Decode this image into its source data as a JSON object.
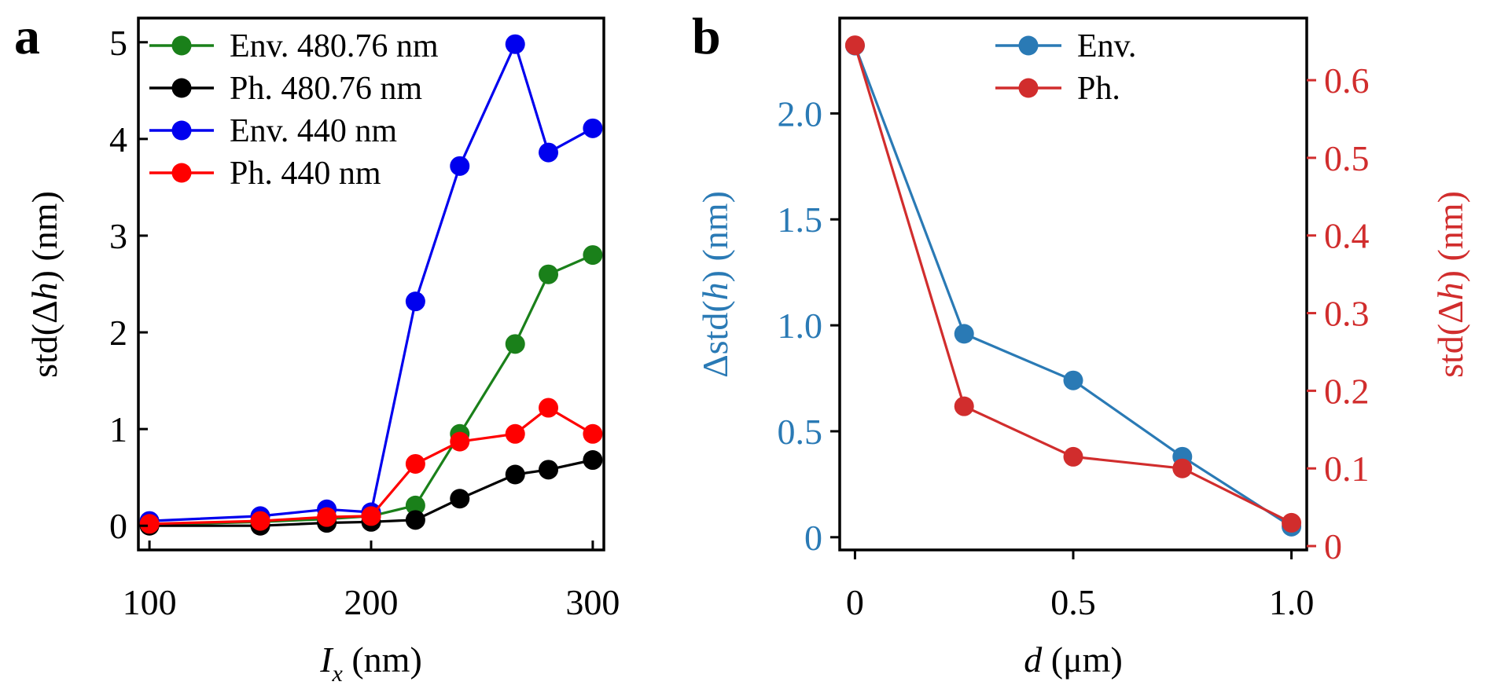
{
  "chart_data": [
    {
      "panel": "a",
      "type": "line",
      "xlabel": "I_x (nm)",
      "xlabel_main": "I",
      "xlabel_sub": "x",
      "xlabel_unit": " (nm)",
      "ylabel": "std(Δh) (nm)",
      "ylabel_pre": "std(Δ",
      "ylabel_var": "h",
      "ylabel_post": ") (nm)",
      "xlim": [
        95,
        305
      ],
      "ylim": [
        -0.25,
        5.25
      ],
      "xticks": [
        100,
        200,
        300
      ],
      "yticks": [
        0,
        1,
        2,
        3,
        4,
        5
      ],
      "grid": false,
      "legend_position": "top-left",
      "series": [
        {
          "name": "Env. 480.76 nm",
          "color": "#1a801a",
          "x": [
            100,
            150,
            180,
            200,
            220,
            240,
            265,
            280,
            300
          ],
          "y": [
            0.01,
            0.04,
            0.07,
            0.1,
            0.21,
            0.95,
            1.88,
            2.6,
            2.8
          ]
        },
        {
          "name": "Ph. 480.76 nm",
          "color": "#000000",
          "x": [
            100,
            150,
            180,
            200,
            220,
            240,
            265,
            280,
            300
          ],
          "y": [
            0.0,
            0.0,
            0.03,
            0.04,
            0.06,
            0.28,
            0.53,
            0.58,
            0.68
          ]
        },
        {
          "name": "Env. 440 nm",
          "color": "#0000ee",
          "x": [
            100,
            150,
            180,
            200,
            220,
            240,
            265,
            280,
            300
          ],
          "y": [
            0.05,
            0.1,
            0.17,
            0.14,
            2.32,
            3.72,
            4.98,
            3.86,
            4.11
          ]
        },
        {
          "name": "Ph. 440 nm",
          "color": "#ff0000",
          "x": [
            100,
            150,
            180,
            200,
            220,
            240,
            265,
            280,
            300
          ],
          "y": [
            0.02,
            0.05,
            0.09,
            0.1,
            0.64,
            0.87,
            0.95,
            1.22,
            0.95
          ]
        }
      ]
    },
    {
      "panel": "b",
      "type": "line",
      "xlabel": "d (μm)",
      "xlabel_var": "d",
      "xlabel_unit": " (μm)",
      "ylabel_left": "Δstd(h) (nm)",
      "ylabel_left_pre": "Δstd(",
      "ylabel_left_var": "h",
      "ylabel_left_post": ") (nm)",
      "ylabel_right": "std(Δh) (nm)",
      "ylabel_right_pre": "std(Δ",
      "ylabel_right_var": "h",
      "ylabel_right_post": ") (nm)",
      "xlim": [
        -0.035,
        1.035
      ],
      "ylim_left": [
        -0.06,
        2.45
      ],
      "ylim_right": [
        -0.005,
        0.68
      ],
      "xticks": [
        0,
        0.5,
        1.0
      ],
      "xtick_labels": [
        "0",
        "0.5",
        "1.0"
      ],
      "yticks_left": [
        0,
        0.5,
        1.0,
        1.5,
        2.0
      ],
      "ytick_labels_left": [
        "0",
        "0.5",
        "1.0",
        "1.5",
        "2.0"
      ],
      "yticks_right": [
        0,
        0.1,
        0.2,
        0.3,
        0.4,
        0.5,
        0.6
      ],
      "ytick_labels_right": [
        "0",
        "0.1",
        "0.2",
        "0.3",
        "0.4",
        "0.5",
        "0.6"
      ],
      "grid": false,
      "legend_position": "top-center",
      "left_axis_color": "#2a7ab5",
      "right_axis_color": "#d12d2d",
      "series": [
        {
          "name": "Env.",
          "axis": "left",
          "color": "#2a7ab5",
          "x": [
            0,
            0.25,
            0.5,
            0.75,
            1.0
          ],
          "y": [
            2.32,
            0.96,
            0.74,
            0.38,
            0.05
          ]
        },
        {
          "name": "Ph.",
          "axis": "right",
          "color": "#d12d2d",
          "x": [
            0,
            0.25,
            0.5,
            0.75,
            1.0
          ],
          "y": [
            0.645,
            0.18,
            0.115,
            0.1,
            0.03
          ]
        }
      ]
    }
  ],
  "panel_letters": [
    "a",
    "b"
  ]
}
